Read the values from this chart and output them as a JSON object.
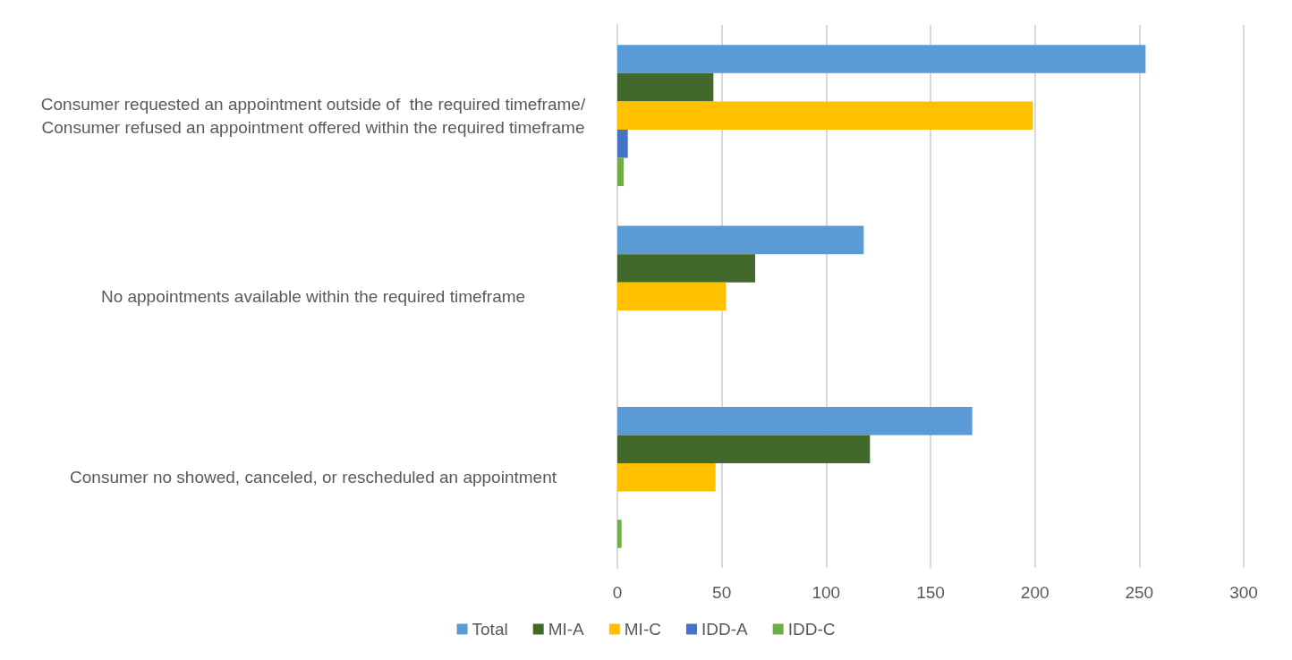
{
  "chart_data": {
    "type": "bar",
    "orientation": "horizontal",
    "categories": [
      "Consumer requested an appointment outside of  the required timeframe/Consumer refused an appointment offered within the required timeframe",
      "No appointments available within the required timeframe",
      "Consumer no showed, canceled, or rescheduled an appointment"
    ],
    "series": [
      {
        "name": "Total",
        "color": "#5b9bd5",
        "values": [
          253,
          118,
          170
        ]
      },
      {
        "name": "MI-A",
        "color": "#43682b",
        "values": [
          46,
          66,
          121
        ]
      },
      {
        "name": "MI-C",
        "color": "#ffc000",
        "values": [
          199,
          52,
          47
        ]
      },
      {
        "name": "IDD-A",
        "color": "#4472c4",
        "values": [
          5,
          null,
          null
        ]
      },
      {
        "name": "IDD-C",
        "color": "#70ad47",
        "values": [
          3,
          null,
          2
        ]
      }
    ],
    "xlim": [
      0,
      300
    ],
    "xticks": [
      0,
      50,
      100,
      150,
      200,
      250,
      300
    ],
    "grid": "x",
    "legend": "bottom"
  }
}
